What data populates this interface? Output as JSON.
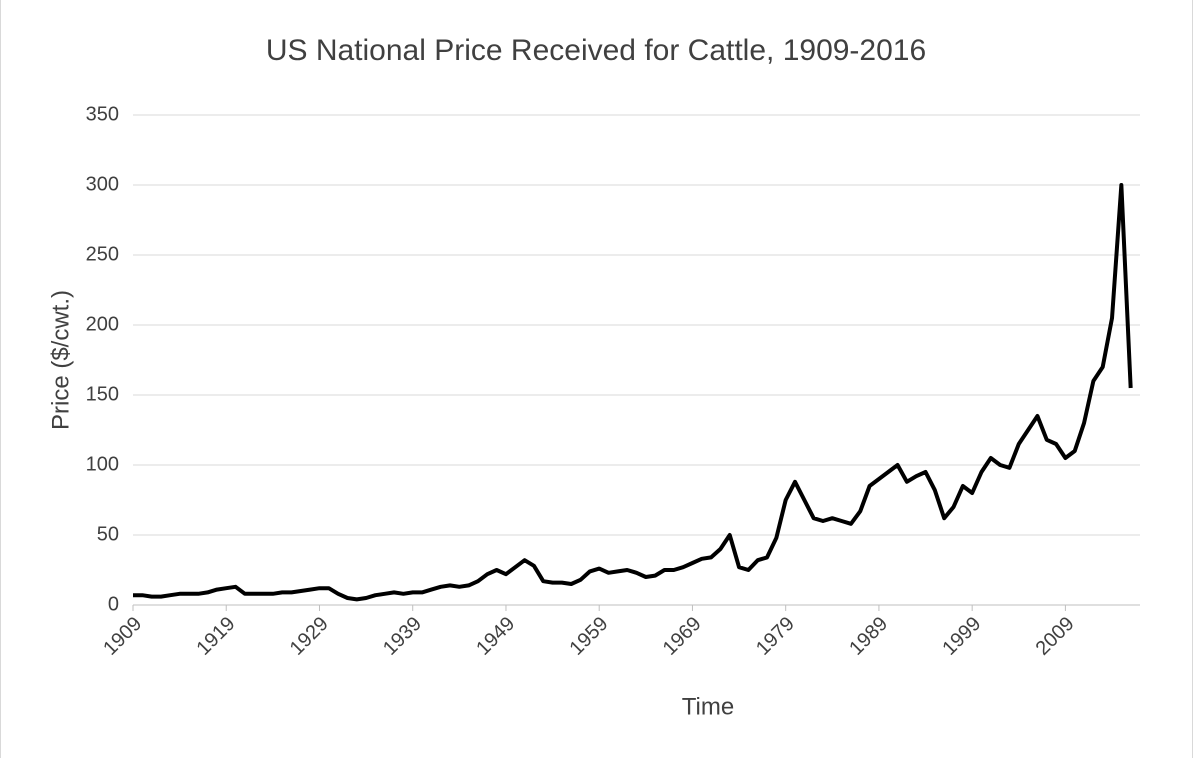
{
  "chart_data": {
    "type": "line",
    "title": "US National Price Received for Cattle, 1909-2016",
    "x_label": "Time",
    "y_label": "Price ($/cwt.)",
    "x": [
      1909,
      1910,
      1911,
      1912,
      1913,
      1914,
      1915,
      1916,
      1917,
      1918,
      1919,
      1920,
      1921,
      1922,
      1923,
      1924,
      1925,
      1926,
      1927,
      1928,
      1929,
      1930,
      1931,
      1932,
      1933,
      1934,
      1935,
      1936,
      1937,
      1938,
      1939,
      1940,
      1941,
      1942,
      1943,
      1944,
      1945,
      1946,
      1947,
      1948,
      1949,
      1950,
      1951,
      1952,
      1953,
      1954,
      1955,
      1956,
      1957,
      1958,
      1959,
      1960,
      1961,
      1962,
      1963,
      1964,
      1965,
      1966,
      1967,
      1968,
      1969,
      1970,
      1971,
      1972,
      1973,
      1974,
      1975,
      1976,
      1977,
      1978,
      1979,
      1980,
      1981,
      1982,
      1983,
      1984,
      1985,
      1986,
      1987,
      1988,
      1989,
      1990,
      1991,
      1992,
      1993,
      1994,
      1995,
      1996,
      1997,
      1998,
      1999,
      2000,
      2001,
      2002,
      2003,
      2004,
      2005,
      2006,
      2007,
      2008,
      2009,
      2010,
      2011,
      2012,
      2013,
      2014,
      2015,
      2016
    ],
    "series": [
      {
        "name": "Price",
        "color": "#000000",
        "values": [
          7,
          7,
          6,
          6,
          7,
          8,
          8,
          8,
          9,
          11,
          12,
          13,
          8,
          8,
          8,
          8,
          9,
          9,
          10,
          11,
          12,
          12,
          8,
          5,
          4,
          5,
          7,
          8,
          9,
          8,
          9,
          9,
          11,
          13,
          14,
          13,
          14,
          17,
          22,
          25,
          22,
          27,
          32,
          28,
          17,
          16,
          16,
          15,
          18,
          24,
          26,
          23,
          24,
          25,
          23,
          20,
          21,
          25,
          25,
          27,
          30,
          33,
          34,
          40,
          50,
          27,
          25,
          32,
          34,
          48,
          75,
          88,
          75,
          62,
          60,
          62,
          60,
          58,
          67,
          85,
          90,
          95,
          100,
          88,
          92,
          95,
          82,
          62,
          70,
          85,
          80,
          95,
          105,
          100,
          98,
          115,
          125,
          135,
          118,
          115,
          105,
          110,
          130,
          160,
          170,
          205,
          300,
          155
        ]
      }
    ],
    "xlim": [
      1909,
      2017
    ],
    "xticks": [
      1909,
      1919,
      1929,
      1939,
      1949,
      1959,
      1969,
      1979,
      1989,
      1999,
      2009
    ],
    "ylim": [
      0,
      350
    ],
    "yticks": [
      0,
      50,
      100,
      150,
      200,
      250,
      300,
      350
    ],
    "grid": true
  }
}
